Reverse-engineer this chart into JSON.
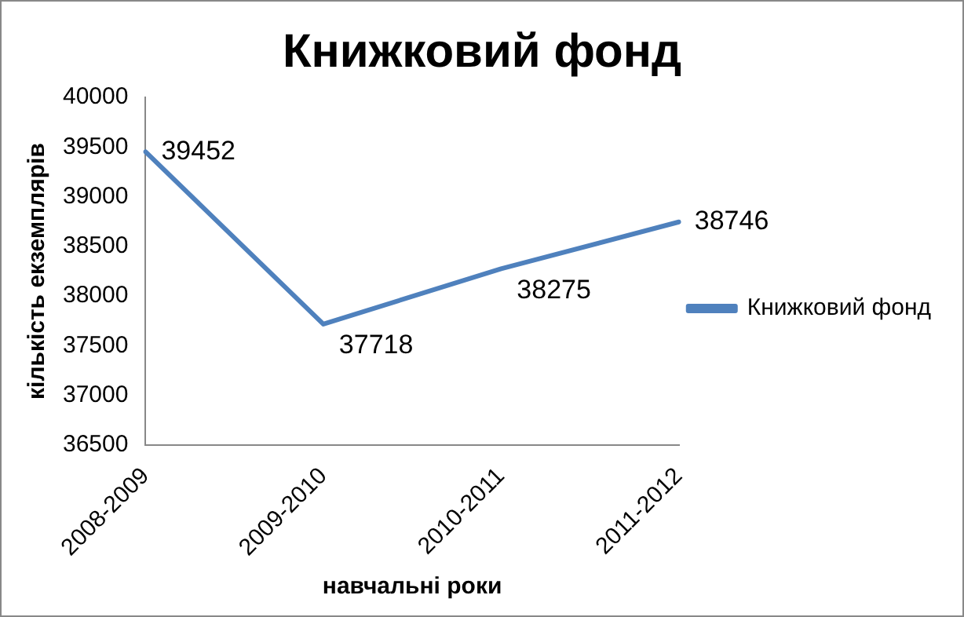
{
  "chart_data": {
    "type": "line",
    "title": "Книжковий фонд",
    "xlabel": "навчальні роки",
    "ylabel": "кількість екземплярів",
    "categories": [
      "2008-2009",
      "2009-2010",
      "2010-2011",
      "2011-2012"
    ],
    "series": [
      {
        "name": "Книжковий фонд",
        "color": "#4f81bd",
        "values": [
          39452,
          37718,
          38275,
          38746
        ]
      }
    ],
    "ylim": [
      36500,
      40000
    ],
    "yticks": [
      36500,
      37000,
      37500,
      38000,
      38500,
      39000,
      39500,
      40000
    ],
    "grid": false,
    "legend": "right",
    "marker": "none",
    "data_labels": true
  }
}
